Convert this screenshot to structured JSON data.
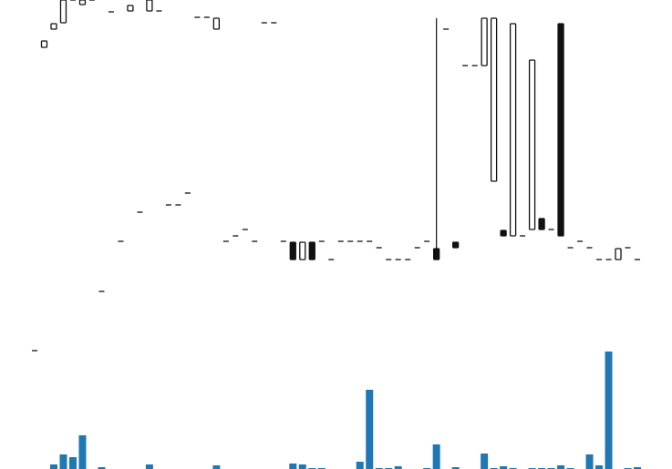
{
  "chart_data": {
    "type": "candlestick",
    "open": [
      0,
      333,
      353,
      360,
      385,
      380,
      385,
      65,
      372,
      120,
      373,
      152,
      373,
      373,
      160,
      160,
      173,
      366,
      366,
      353,
      120,
      126,
      133,
      120,
      360,
      360,
      120,
      119,
      100,
      119,
      120,
      100,
      120,
      120,
      120,
      120,
      113,
      100,
      100,
      100,
      113,
      120,
      112,
      353,
      119,
      313,
      313,
      313,
      186,
      132,
      126,
      126,
      133,
      145,
      133,
      359,
      113,
      120,
      113,
      100,
      100,
      100,
      113,
      100
    ],
    "high": [
      0,
      340,
      359,
      385,
      385,
      385,
      385,
      65,
      372,
      120,
      379,
      152,
      385,
      373,
      160,
      160,
      173,
      366,
      366,
      365,
      120,
      126,
      133,
      120,
      360,
      360,
      120,
      119,
      119,
      119,
      120,
      100,
      120,
      120,
      120,
      120,
      113,
      100,
      100,
      100,
      113,
      120,
      365,
      353,
      119,
      313,
      313,
      365,
      365,
      132,
      359,
      126,
      319,
      145,
      133,
      359,
      113,
      120,
      113,
      100,
      100,
      112,
      113,
      100
    ],
    "low": [
      0,
      333,
      353,
      360,
      385,
      380,
      385,
      65,
      372,
      120,
      373,
      152,
      373,
      373,
      160,
      160,
      173,
      366,
      366,
      353,
      120,
      126,
      133,
      120,
      360,
      360,
      120,
      100,
      100,
      100,
      120,
      100,
      120,
      120,
      120,
      120,
      113,
      100,
      100,
      100,
      113,
      120,
      100,
      353,
      113,
      313,
      313,
      313,
      186,
      126,
      126,
      126,
      133,
      133,
      133,
      126,
      113,
      120,
      113,
      100,
      100,
      100,
      113,
      100
    ],
    "close": [
      0,
      340,
      359,
      385,
      385,
      385,
      385,
      65,
      372,
      120,
      379,
      152,
      385,
      373,
      160,
      160,
      173,
      366,
      366,
      365,
      120,
      126,
      133,
      120,
      360,
      360,
      120,
      100,
      119,
      100,
      120,
      100,
      120,
      120,
      120,
      120,
      113,
      100,
      100,
      100,
      113,
      120,
      100,
      353,
      113,
      313,
      313,
      365,
      365,
      126,
      359,
      126,
      319,
      133,
      133,
      126,
      113,
      120,
      113,
      100,
      100,
      112,
      113,
      100
    ],
    "volume": [
      0,
      0,
      5,
      16,
      13,
      37,
      0,
      2,
      0,
      0,
      0,
      0,
      5,
      0,
      0,
      0,
      0,
      0,
      0,
      4,
      0,
      0,
      0,
      0,
      0,
      0,
      0,
      6,
      5,
      1,
      1,
      0,
      0,
      0,
      8,
      87,
      1,
      1,
      3,
      0,
      0,
      1,
      27,
      0,
      2,
      0,
      0,
      17,
      1,
      3,
      1,
      0,
      1,
      1,
      1,
      4,
      1,
      0,
      16,
      4,
      129,
      0,
      1,
      2
    ],
    "up_color": "#ffffff",
    "down_color": "#111111",
    "outline_color": "#111111",
    "volume_color": "#1f77b4",
    "ylim": [
      0,
      385
    ],
    "volume_ylim": [
      0,
      130
    ]
  }
}
